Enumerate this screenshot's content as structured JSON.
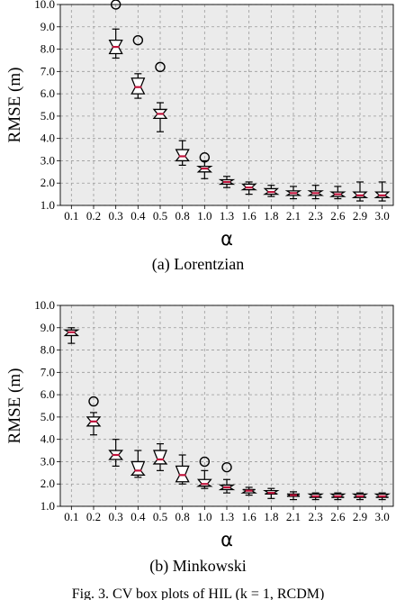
{
  "colors": {
    "plot_bg": "#ebebeb",
    "grid": "#9a9a9a",
    "median": "#c0143c",
    "box": "#000000"
  },
  "footer_text": "Fig. 3.  CV box plots of HIL (k = 1, RCDM)",
  "chart_data": [
    {
      "type": "box",
      "caption": "(a) Lorentzian",
      "ylabel": "RMSE (m)",
      "xlabel": "α",
      "ylim": [
        1.0,
        10.0
      ],
      "yticks": [
        "1.0",
        "2.0",
        "3.0",
        "4.0",
        "5.0",
        "6.0",
        "7.0",
        "8.0",
        "9.0",
        "10.0"
      ],
      "grid": true,
      "categories": [
        "0.1",
        "0.2",
        "0.3",
        "0.4",
        "0.5",
        "0.8",
        "1.0",
        "1.3",
        "1.6",
        "1.8",
        "2.1",
        "2.3",
        "2.6",
        "2.9",
        "3.0"
      ],
      "boxes": [
        null,
        null,
        {
          "low": 7.6,
          "q1": 7.8,
          "median": 8.1,
          "q3": 8.4,
          "high": 8.9,
          "outliers": [
            10.0
          ]
        },
        {
          "low": 5.8,
          "q1": 6.0,
          "median": 6.3,
          "q3": 6.7,
          "high": 6.9,
          "outliers": [
            8.4
          ]
        },
        {
          "low": 4.3,
          "q1": 4.9,
          "median": 5.1,
          "q3": 5.3,
          "high": 5.6,
          "outliers": [
            7.2
          ]
        },
        {
          "low": 2.8,
          "q1": 3.0,
          "median": 3.2,
          "q3": 3.5,
          "high": 3.9,
          "outliers": []
        },
        {
          "low": 2.2,
          "q1": 2.5,
          "median": 2.65,
          "q3": 2.75,
          "high": 3.0,
          "outliers": [
            3.15
          ]
        },
        {
          "low": 1.8,
          "q1": 1.95,
          "median": 2.05,
          "q3": 2.15,
          "high": 2.3,
          "outliers": []
        },
        {
          "low": 1.5,
          "q1": 1.7,
          "median": 1.8,
          "q3": 1.95,
          "high": 2.05,
          "outliers": []
        },
        {
          "low": 1.4,
          "q1": 1.5,
          "median": 1.6,
          "q3": 1.75,
          "high": 1.9,
          "outliers": []
        },
        {
          "low": 1.3,
          "q1": 1.45,
          "median": 1.55,
          "q3": 1.65,
          "high": 1.85,
          "outliers": []
        },
        {
          "low": 1.3,
          "q1": 1.45,
          "median": 1.55,
          "q3": 1.65,
          "high": 1.9,
          "outliers": []
        },
        {
          "low": 1.3,
          "q1": 1.4,
          "median": 1.5,
          "q3": 1.6,
          "high": 1.85,
          "outliers": []
        },
        {
          "low": 1.2,
          "q1": 1.35,
          "median": 1.45,
          "q3": 1.6,
          "high": 2.05,
          "outliers": []
        },
        {
          "low": 1.2,
          "q1": 1.35,
          "median": 1.45,
          "q3": 1.6,
          "high": 2.05,
          "outliers": []
        }
      ]
    },
    {
      "type": "box",
      "caption": "(b) Minkowski",
      "ylabel": "RMSE (m)",
      "xlabel": "α",
      "ylim": [
        1.0,
        10.0
      ],
      "yticks": [
        "1.0",
        "2.0",
        "3.0",
        "4.0",
        "5.0",
        "6.0",
        "7.0",
        "8.0",
        "9.0",
        "10.0"
      ],
      "grid": true,
      "categories": [
        "0.1",
        "0.2",
        "0.3",
        "0.4",
        "0.5",
        "0.8",
        "1.0",
        "1.3",
        "1.6",
        "1.8",
        "2.1",
        "2.3",
        "2.6",
        "2.9",
        "3.0"
      ],
      "boxes": [
        {
          "low": 8.3,
          "q1": 8.65,
          "median": 8.8,
          "q3": 8.9,
          "high": 9.0,
          "outliers": []
        },
        {
          "low": 4.2,
          "q1": 4.6,
          "median": 4.8,
          "q3": 5.0,
          "high": 5.2,
          "outliers": [
            5.7
          ]
        },
        {
          "low": 2.8,
          "q1": 3.1,
          "median": 3.3,
          "q3": 3.5,
          "high": 4.0,
          "outliers": []
        },
        {
          "low": 2.3,
          "q1": 2.4,
          "median": 2.6,
          "q3": 3.0,
          "high": 3.5,
          "outliers": []
        },
        {
          "low": 2.6,
          "q1": 2.9,
          "median": 3.1,
          "q3": 3.5,
          "high": 3.8,
          "outliers": []
        },
        {
          "low": 2.0,
          "q1": 2.1,
          "median": 2.4,
          "q3": 2.8,
          "high": 3.3,
          "outliers": []
        },
        {
          "low": 1.8,
          "q1": 1.9,
          "median": 2.0,
          "q3": 2.2,
          "high": 2.6,
          "outliers": [
            3.0
          ]
        },
        {
          "low": 1.6,
          "q1": 1.75,
          "median": 1.85,
          "q3": 1.95,
          "high": 2.2,
          "outliers": [
            2.75
          ]
        },
        {
          "low": 1.5,
          "q1": 1.6,
          "median": 1.7,
          "q3": 1.75,
          "high": 1.85,
          "outliers": []
        },
        {
          "low": 1.35,
          "q1": 1.55,
          "median": 1.6,
          "q3": 1.7,
          "high": 1.8,
          "outliers": []
        },
        {
          "low": 1.3,
          "q1": 1.45,
          "median": 1.5,
          "q3": 1.55,
          "high": 1.65,
          "outliers": []
        },
        {
          "low": 1.3,
          "q1": 1.4,
          "median": 1.45,
          "q3": 1.55,
          "high": 1.6,
          "outliers": []
        },
        {
          "low": 1.3,
          "q1": 1.4,
          "median": 1.45,
          "q3": 1.55,
          "high": 1.6,
          "outliers": []
        },
        {
          "low": 1.3,
          "q1": 1.4,
          "median": 1.45,
          "q3": 1.55,
          "high": 1.6,
          "outliers": []
        },
        {
          "low": 1.3,
          "q1": 1.4,
          "median": 1.45,
          "q3": 1.55,
          "high": 1.6,
          "outliers": []
        }
      ]
    }
  ]
}
